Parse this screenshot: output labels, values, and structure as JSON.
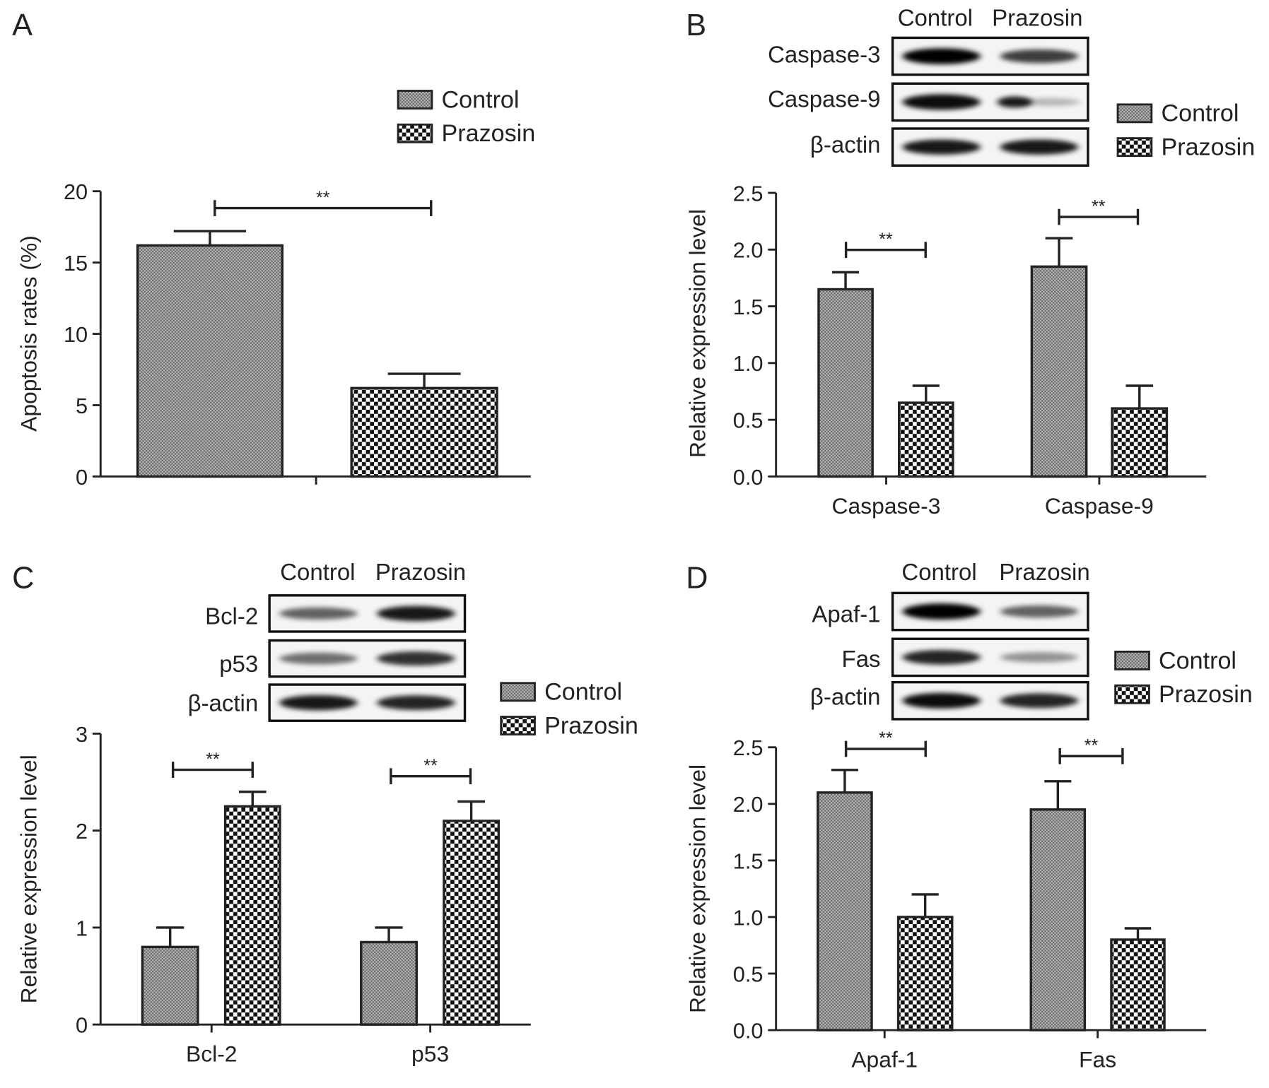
{
  "colors": {
    "axis": "#222222",
    "control_fill": "#9a9a9a",
    "prazosin_fill": "#111111",
    "background": "#ffffff"
  },
  "legend": {
    "control": "Control",
    "prazosin": "Prazosin"
  },
  "significance": "**",
  "chart_data": [
    {
      "panel": "A",
      "type": "bar",
      "title": "",
      "xlabel": "",
      "ylabel": "Apoptosis rates (%)",
      "ylim": [
        0,
        20
      ],
      "yticks": [
        "0",
        "5",
        "10",
        "15",
        "20"
      ],
      "ytick_values": [
        0,
        5,
        10,
        15,
        20
      ],
      "categories": [
        ""
      ],
      "series": [
        {
          "name": "Control",
          "values": [
            16.2
          ],
          "error_upper": [
            17.2
          ]
        },
        {
          "name": "Prazosin",
          "values": [
            6.2
          ],
          "error_upper": [
            7.2
          ]
        }
      ],
      "annotations": [
        "**"
      ],
      "legend_position": "top-right",
      "blot": null
    },
    {
      "panel": "B",
      "type": "bar",
      "title": "",
      "xlabel": "",
      "ylabel": "Relative expression level",
      "ylim": [
        0,
        2.5
      ],
      "yticks": [
        "0.0",
        "0.5",
        "1.0",
        "1.5",
        "2.0",
        "2.5"
      ],
      "ytick_values": [
        0,
        0.5,
        1,
        1.5,
        2,
        2.5
      ],
      "categories": [
        "Caspase-3",
        "Caspase-9"
      ],
      "series": [
        {
          "name": "Control",
          "values": [
            1.65,
            1.85
          ],
          "error_upper": [
            1.8,
            2.1
          ]
        },
        {
          "name": "Prazosin",
          "values": [
            0.65,
            0.6
          ],
          "error_upper": [
            0.8,
            0.8
          ]
        }
      ],
      "annotations": [
        "**",
        "**"
      ],
      "legend_position": "right",
      "blot": {
        "columns": [
          "Control",
          "Prazosin"
        ],
        "rows": [
          "Caspase-3",
          "Caspase-9",
          "β-actin"
        ]
      }
    },
    {
      "panel": "C",
      "type": "bar",
      "title": "",
      "xlabel": "",
      "ylabel": "Relative expression level",
      "ylim": [
        0,
        3
      ],
      "yticks": [
        "0",
        "1",
        "2",
        "3"
      ],
      "ytick_values": [
        0,
        1,
        2,
        3
      ],
      "categories": [
        "Bcl-2",
        "p53"
      ],
      "series": [
        {
          "name": "Control",
          "values": [
            0.8,
            0.85
          ],
          "error_upper": [
            1.0,
            1.0
          ]
        },
        {
          "name": "Prazosin",
          "values": [
            2.25,
            2.1
          ],
          "error_upper": [
            2.4,
            2.3
          ]
        }
      ],
      "annotations": [
        "**",
        "**"
      ],
      "legend_position": "right",
      "blot": {
        "columns": [
          "Control",
          "Prazosin"
        ],
        "rows": [
          "Bcl-2",
          "p53",
          "β-actin"
        ]
      }
    },
    {
      "panel": "D",
      "type": "bar",
      "title": "",
      "xlabel": "",
      "ylabel": "Relative expression level",
      "ylim": [
        0,
        2.5
      ],
      "yticks": [
        "0.0",
        "0.5",
        "1.0",
        "1.5",
        "2.0",
        "2.5"
      ],
      "ytick_values": [
        0,
        0.5,
        1,
        1.5,
        2,
        2.5
      ],
      "categories": [
        "Apaf-1",
        "Fas"
      ],
      "series": [
        {
          "name": "Control",
          "values": [
            2.1,
            1.95
          ],
          "error_upper": [
            2.3,
            2.2
          ]
        },
        {
          "name": "Prazosin",
          "values": [
            1.0,
            0.8
          ],
          "error_upper": [
            1.2,
            0.9
          ]
        }
      ],
      "annotations": [
        "**",
        "**"
      ],
      "legend_position": "right",
      "blot": {
        "columns": [
          "Control",
          "Prazosin"
        ],
        "rows": [
          "Apaf-1",
          "Fas",
          "β-actin"
        ]
      }
    }
  ]
}
